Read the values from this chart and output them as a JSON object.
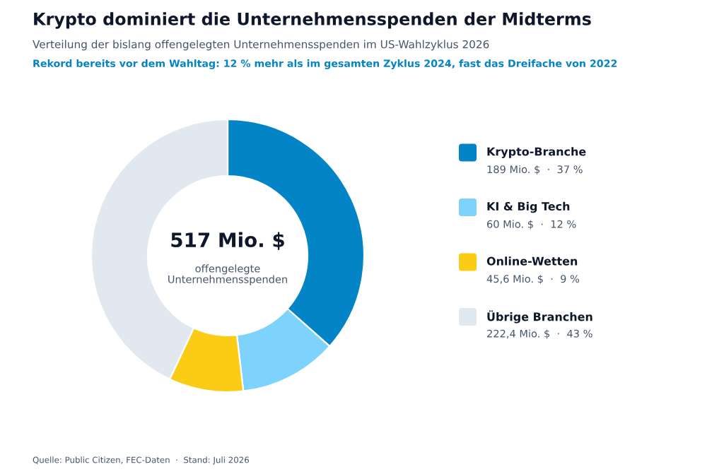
{
  "chart_data": {
    "type": "donut",
    "title": "Krypto dominiert die Unternehmensspenden der Midterms",
    "subtitle": "Verteilung der bislang offengelegten Unternehmensspenden im US-Wahlzyklus 2026",
    "categories": [
      "Krypto-Branche",
      "KI & Big Tech",
      "Online-Wetten",
      "Übrige Branchen"
    ],
    "values": [
      189,
      60,
      45.6,
      222.4
    ],
    "colors": [
      "#0284c7",
      "#7dd3fc",
      "#facc15",
      "#e2e8f0"
    ],
    "value_labels": [
      "189 Mio. $  ·  37 %",
      "60 Mio. $  ·  12 %",
      "45,6 Mio. $  ·  9 %",
      "222,4 Mio. $  ·  43 %"
    ],
    "legend": "right",
    "annotations": [
      "Rekord bereits vor dem Wahltag: 12 % mehr als im gesamten Zyklus 2024, fast das Dreifache von 2022",
      "517 Mio. $",
      "offengelegte\nUnternehmensspenden",
      "Quelle: Public Citizen, FEC-Daten  ·  Stand: Juli 2026"
    ]
  }
}
